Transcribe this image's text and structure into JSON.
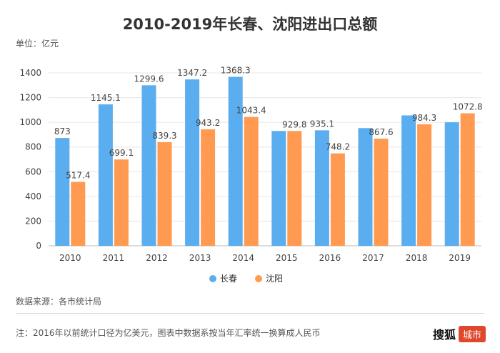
{
  "chart_data": {
    "type": "bar",
    "title": "2010-2019年长春、沈阳进出口总额",
    "unit_label": "单位：亿元",
    "categories": [
      "2010",
      "2011",
      "2012",
      "2013",
      "2014",
      "2015",
      "2016",
      "2017",
      "2018",
      "2019"
    ],
    "series": [
      {
        "name": "长春",
        "color": "#5aaef0",
        "values": [
          873,
          1145.1,
          1299.6,
          1347.2,
          1368.3,
          929.8,
          935.1,
          953.0,
          1056.0,
          1000.0
        ],
        "labels": [
          "873",
          "1145.1",
          "1299.6",
          "1347.2",
          "1368.3",
          "",
          "935.1",
          "",
          "",
          ""
        ]
      },
      {
        "name": "沈阳",
        "color": "#ff9a50",
        "values": [
          517.4,
          699.1,
          839.3,
          943.2,
          1043.4,
          929.8,
          748.2,
          867.6,
          984.3,
          1072.8
        ],
        "labels": [
          "517.4",
          "699.1",
          "839.3",
          "943.2",
          "1043.4",
          "929.8",
          "748.2",
          "867.6",
          "984.3",
          "1072.8"
        ]
      }
    ],
    "yticks": [
      "0",
      "200",
      "400",
      "600",
      "800",
      "1000",
      "1200",
      "1400"
    ],
    "ylim": [
      0,
      1400
    ],
    "legend_position": "bottom-center"
  },
  "footer": {
    "source": "数据来源：各市统计局",
    "note": "注：2016年以前统计口径为亿美元，图表中数据系按当年汇率统一换算成人民币",
    "brand_name": "搜狐",
    "brand_badge": "城市"
  }
}
